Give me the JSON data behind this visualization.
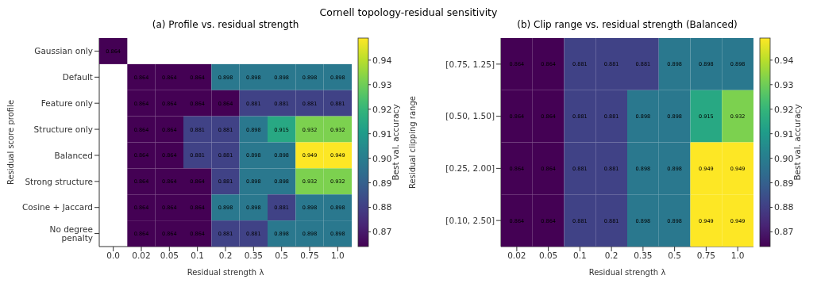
{
  "chart_data": [
    {
      "type": "heatmap",
      "title": "(a) Profile vs. residual strength",
      "annotations": [
        "Cornell topology-residual sensitivity"
      ],
      "xlabel": "Residual strength λ",
      "ylabel": "Residual score profile",
      "clabel": "Best val. accuracy",
      "categories": [
        "0.0",
        "0.02",
        "0.05",
        "0.1",
        "0.2",
        "0.35",
        "0.5",
        "0.75",
        "1.0"
      ],
      "y_categories": [
        "Gaussian only",
        "Default",
        "Feature only",
        "Structure only",
        "Balanced",
        "Strong structure",
        "Cosine + Jaccard",
        "No degree penalty"
      ],
      "cells": [
        [
          0.864,
          null,
          null,
          null,
          null,
          null,
          null,
          null,
          null
        ],
        [
          null,
          0.864,
          0.864,
          0.864,
          0.898,
          0.898,
          0.898,
          0.898,
          0.898
        ],
        [
          null,
          0.864,
          0.864,
          0.864,
          0.864,
          0.881,
          0.881,
          0.881,
          0.881
        ],
        [
          null,
          0.864,
          0.864,
          0.881,
          0.881,
          0.898,
          0.915,
          0.932,
          0.932
        ],
        [
          null,
          0.864,
          0.864,
          0.881,
          0.881,
          0.898,
          0.898,
          0.949,
          0.949
        ],
        [
          null,
          0.864,
          0.864,
          0.864,
          0.881,
          0.898,
          0.898,
          0.932,
          0.932
        ],
        [
          null,
          0.864,
          0.864,
          0.864,
          0.898,
          0.898,
          0.881,
          0.898,
          0.898
        ],
        [
          null,
          0.864,
          0.864,
          0.864,
          0.881,
          0.881,
          0.898,
          0.898,
          0.898
        ]
      ],
      "data_labels": true,
      "clim": [
        0.864,
        0.949
      ],
      "cticks": [
        0.87,
        0.88,
        0.89,
        {
          "value": 0.9,
          "label": "0.90"
        },
        0.91,
        0.92,
        0.93,
        0.94
      ]
    },
    {
      "type": "heatmap",
      "title": "(b) Clip range vs. residual strength (Balanced)",
      "xlabel": "Residual strength λ",
      "ylabel": "Residual clipping range",
      "clabel": "Best val. accuracy",
      "categories": [
        "0.02",
        "0.05",
        "0.1",
        "0.2",
        "0.35",
        "0.5",
        "0.75",
        "1.0"
      ],
      "y_categories": [
        "[0.75, 1.25]",
        "[0.50, 1.50]",
        "[0.25, 2.00]",
        "[0.10, 2.50]"
      ],
      "cells": [
        [
          0.864,
          0.864,
          0.881,
          0.881,
          0.881,
          0.898,
          0.898,
          0.898
        ],
        [
          0.864,
          0.864,
          0.881,
          0.881,
          0.898,
          0.898,
          0.915,
          0.932
        ],
        [
          0.864,
          0.864,
          0.881,
          0.881,
          0.898,
          0.898,
          0.949,
          0.949
        ],
        [
          0.864,
          0.864,
          0.881,
          0.881,
          0.898,
          0.898,
          0.949,
          0.949
        ]
      ],
      "data_labels": true,
      "clim": [
        0.864,
        0.949
      ],
      "cticks": [
        0.87,
        0.88,
        0.89,
        {
          "value": 0.9,
          "label": "0.90"
        },
        0.91,
        0.92,
        0.93,
        0.94
      ]
    }
  ]
}
